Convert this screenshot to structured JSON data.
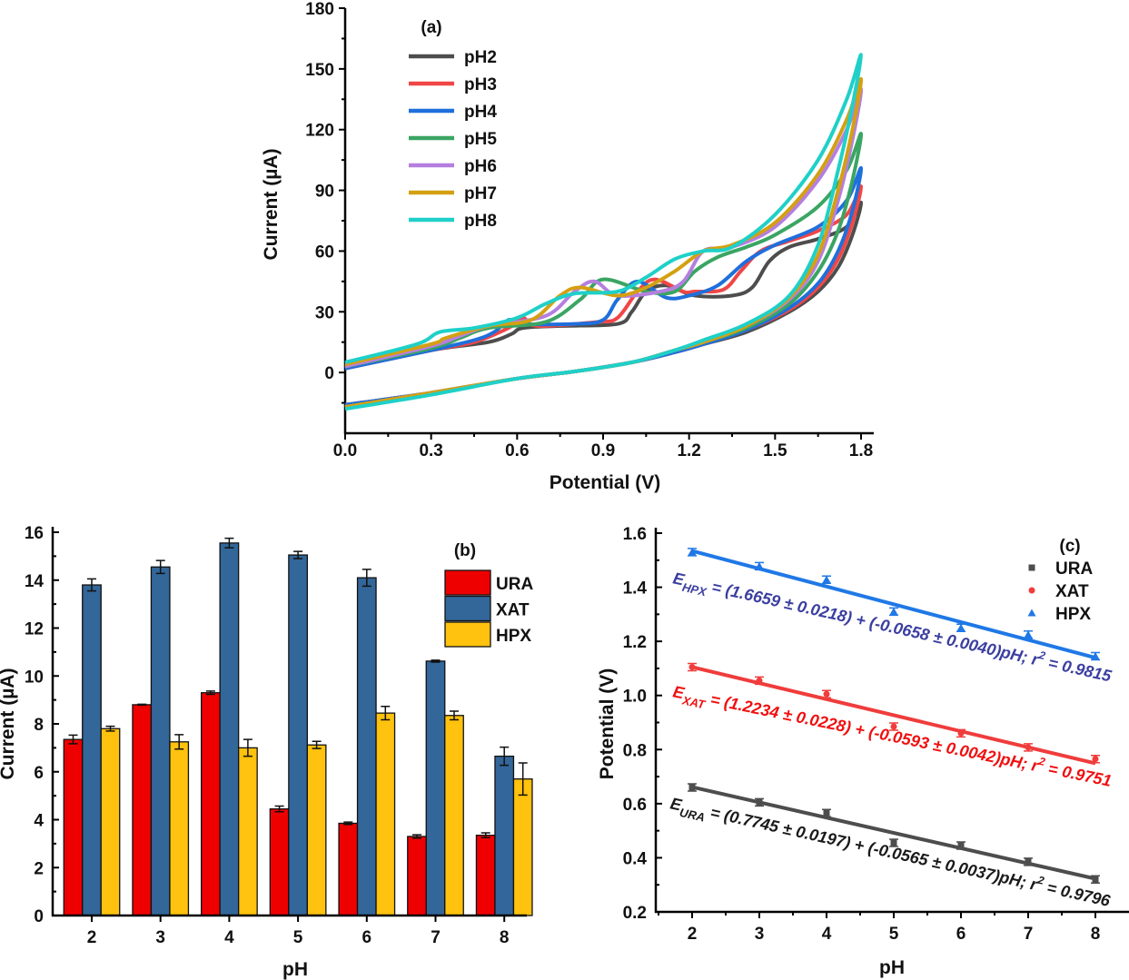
{
  "chart_data": [
    {
      "type": "line",
      "panel_label": "(a)",
      "xlabel": "Potential (V)",
      "ylabel": "Current (µA)",
      "xlim": [
        0,
        1.8
      ],
      "ylim": [
        -30,
        180
      ],
      "xticks": [
        "0.0",
        "0.3",
        "0.6",
        "0.9",
        "1.2",
        "1.5",
        "1.8"
      ],
      "yticks": [
        "0",
        "30",
        "60",
        "90",
        "120",
        "150",
        "180"
      ],
      "grid": false,
      "legend_position": "top-left",
      "series": [
        {
          "name": "pH2",
          "color": "#4d4d4d",
          "forward": [
            [
              0,
              -16
            ],
            [
              0.3,
              -10
            ],
            [
              0.6,
              -3
            ],
            [
              0.8,
              0.5
            ],
            [
              1.0,
              5
            ],
            [
              1.15,
              10
            ],
            [
              1.25,
              14
            ],
            [
              1.4,
              20
            ],
            [
              1.55,
              30
            ],
            [
              1.65,
              40
            ],
            [
              1.72,
              52
            ],
            [
              1.77,
              68
            ],
            [
              1.8,
              84
            ]
          ],
          "reverse": [
            [
              1.8,
              84
            ],
            [
              1.75,
              72
            ],
            [
              1.65,
              66
            ],
            [
              1.55,
              62
            ],
            [
              1.48,
              55
            ],
            [
              1.42,
              42
            ],
            [
              1.35,
              38
            ],
            [
              1.22,
              38
            ],
            [
              1.12,
              43
            ],
            [
              1.05,
              40
            ],
            [
              1.0,
              30
            ],
            [
              0.95,
              24
            ],
            [
              0.75,
              23
            ],
            [
              0.62,
              22
            ],
            [
              0.58,
              19
            ],
            [
              0.5,
              15
            ],
            [
              0.3,
              11
            ],
            [
              0,
              2
            ]
          ]
        },
        {
          "name": "pH3",
          "color": "#f04646",
          "forward": [
            [
              0,
              -16
            ],
            [
              0.3,
              -10
            ],
            [
              0.6,
              -3
            ],
            [
              0.8,
              0.5
            ],
            [
              1.0,
              5
            ],
            [
              1.15,
              10
            ],
            [
              1.25,
              14
            ],
            [
              1.4,
              21
            ],
            [
              1.55,
              31
            ],
            [
              1.65,
              42
            ],
            [
              1.72,
              56
            ],
            [
              1.77,
              74
            ],
            [
              1.8,
              92
            ]
          ],
          "reverse": [
            [
              1.8,
              92
            ],
            [
              1.75,
              78
            ],
            [
              1.65,
              70
            ],
            [
              1.55,
              65
            ],
            [
              1.45,
              60
            ],
            [
              1.38,
              50
            ],
            [
              1.32,
              41
            ],
            [
              1.22,
              40
            ],
            [
              1.18,
              40
            ],
            [
              1.08,
              46
            ],
            [
              1.02,
              40
            ],
            [
              0.95,
              27
            ],
            [
              0.88,
              25
            ],
            [
              0.67,
              23
            ],
            [
              0.62,
              27
            ],
            [
              0.57,
              22
            ],
            [
              0.45,
              15
            ],
            [
              0.3,
              11
            ],
            [
              0,
              2
            ]
          ]
        },
        {
          "name": "pH4",
          "color": "#1f6fdc",
          "forward": [
            [
              0,
              -16
            ],
            [
              0.3,
              -10
            ],
            [
              0.6,
              -3
            ],
            [
              0.8,
              0.5
            ],
            [
              1.0,
              5
            ],
            [
              1.15,
              10
            ],
            [
              1.25,
              14
            ],
            [
              1.4,
              21
            ],
            [
              1.55,
              32
            ],
            [
              1.65,
              44
            ],
            [
              1.72,
              60
            ],
            [
              1.77,
              80
            ],
            [
              1.8,
              101
            ]
          ],
          "reverse": [
            [
              1.8,
              101
            ],
            [
              1.75,
              85
            ],
            [
              1.65,
              72
            ],
            [
              1.5,
              63
            ],
            [
              1.4,
              55
            ],
            [
              1.3,
              43
            ],
            [
              1.2,
              38
            ],
            [
              1.12,
              37
            ],
            [
              1.02,
              45
            ],
            [
              0.95,
              36
            ],
            [
              0.9,
              26
            ],
            [
              0.8,
              24
            ],
            [
              0.6,
              24
            ],
            [
              0.57,
              26
            ],
            [
              0.52,
              20
            ],
            [
              0.45,
              16
            ],
            [
              0.3,
              11
            ],
            [
              0,
              2
            ]
          ]
        },
        {
          "name": "pH5",
          "color": "#3aa563",
          "forward": [
            [
              0,
              -17
            ],
            [
              0.3,
              -10
            ],
            [
              0.6,
              -3
            ],
            [
              0.8,
              0.5
            ],
            [
              1.0,
              5
            ],
            [
              1.15,
              11
            ],
            [
              1.25,
              15
            ],
            [
              1.4,
              22
            ],
            [
              1.55,
              34
            ],
            [
              1.65,
              50
            ],
            [
              1.72,
              70
            ],
            [
              1.77,
              95
            ],
            [
              1.8,
              118
            ]
          ],
          "reverse": [
            [
              1.8,
              118
            ],
            [
              1.75,
              100
            ],
            [
              1.65,
              82
            ],
            [
              1.5,
              68
            ],
            [
              1.4,
              62
            ],
            [
              1.3,
              57
            ],
            [
              1.22,
              50
            ],
            [
              1.15,
              40
            ],
            [
              1.05,
              40
            ],
            [
              0.9,
              46
            ],
            [
              0.82,
              36
            ],
            [
              0.7,
              25
            ],
            [
              0.5,
              22
            ],
            [
              0.4,
              17
            ],
            [
              0.3,
              12
            ],
            [
              0,
              3
            ]
          ]
        },
        {
          "name": "pH6",
          "color": "#b47fe0",
          "forward": [
            [
              0,
              -17
            ],
            [
              0.3,
              -10
            ],
            [
              0.6,
              -3
            ],
            [
              0.8,
              0.5
            ],
            [
              1.0,
              5
            ],
            [
              1.15,
              11
            ],
            [
              1.25,
              15
            ],
            [
              1.4,
              23
            ],
            [
              1.55,
              36
            ],
            [
              1.65,
              55
            ],
            [
              1.72,
              85
            ],
            [
              1.77,
              115
            ],
            [
              1.8,
              140
            ]
          ],
          "reverse": [
            [
              1.8,
              140
            ],
            [
              1.75,
              120
            ],
            [
              1.65,
              95
            ],
            [
              1.5,
              72
            ],
            [
              1.35,
              62
            ],
            [
              1.25,
              60
            ],
            [
              1.18,
              45
            ],
            [
              1.1,
              40
            ],
            [
              0.95,
              38
            ],
            [
              0.87,
              45
            ],
            [
              0.8,
              40
            ],
            [
              0.7,
              28
            ],
            [
              0.5,
              23
            ],
            [
              0.4,
              18
            ],
            [
              0.3,
              13
            ],
            [
              0,
              3
            ]
          ]
        },
        {
          "name": "pH7",
          "color": "#d4a012",
          "forward": [
            [
              0,
              -17
            ],
            [
              0.3,
              -10
            ],
            [
              0.6,
              -3
            ],
            [
              0.8,
              0.5
            ],
            [
              1.0,
              5
            ],
            [
              1.15,
              11
            ],
            [
              1.25,
              15
            ],
            [
              1.4,
              23
            ],
            [
              1.55,
              37
            ],
            [
              1.65,
              58
            ],
            [
              1.72,
              90
            ],
            [
              1.77,
              120
            ],
            [
              1.8,
              145
            ]
          ],
          "reverse": [
            [
              1.8,
              145
            ],
            [
              1.75,
              125
            ],
            [
              1.65,
              98
            ],
            [
              1.5,
              74
            ],
            [
              1.35,
              63
            ],
            [
              1.25,
              60
            ],
            [
              1.15,
              50
            ],
            [
              1.05,
              42
            ],
            [
              0.95,
              38
            ],
            [
              0.82,
              42
            ],
            [
              0.75,
              38
            ],
            [
              0.65,
              26
            ],
            [
              0.5,
              23
            ],
            [
              0.35,
              17
            ],
            [
              0.3,
              14
            ],
            [
              0,
              4
            ]
          ]
        },
        {
          "name": "pH8",
          "color": "#1fd0c8",
          "forward": [
            [
              0,
              -18
            ],
            [
              0.3,
              -11
            ],
            [
              0.6,
              -3
            ],
            [
              0.8,
              0.5
            ],
            [
              1.0,
              5
            ],
            [
              1.15,
              11
            ],
            [
              1.25,
              16
            ],
            [
              1.4,
              24
            ],
            [
              1.55,
              38
            ],
            [
              1.65,
              63
            ],
            [
              1.72,
              100
            ],
            [
              1.77,
              132
            ],
            [
              1.8,
              157
            ]
          ],
          "reverse": [
            [
              1.8,
              157
            ],
            [
              1.75,
              135
            ],
            [
              1.65,
              105
            ],
            [
              1.5,
              78
            ],
            [
              1.35,
              62
            ],
            [
              1.25,
              60
            ],
            [
              1.15,
              56
            ],
            [
              1.05,
              47
            ],
            [
              0.95,
              40
            ],
            [
              0.8,
              39
            ],
            [
              0.7,
              34
            ],
            [
              0.6,
              27
            ],
            [
              0.45,
              22
            ],
            [
              0.33,
              20
            ],
            [
              0.25,
              14
            ],
            [
              0,
              5
            ]
          ]
        }
      ]
    },
    {
      "type": "bar",
      "panel_label": "(b)",
      "xlabel": "pH",
      "ylabel": "Current (µA)",
      "ylim": [
        0,
        16
      ],
      "yticks": [
        "0",
        "2",
        "4",
        "6",
        "8",
        "10",
        "12",
        "14",
        "16"
      ],
      "categories": [
        "2",
        "3",
        "4",
        "5",
        "6",
        "7",
        "8"
      ],
      "grid": false,
      "legend_position": "top-right",
      "series": [
        {
          "name": "URA",
          "color": "#ee0000",
          "values": [
            7.35,
            8.8,
            9.3,
            4.45,
            3.85,
            3.3,
            3.35
          ],
          "errors": [
            0.18,
            0.02,
            0.07,
            0.12,
            0.05,
            0.07,
            0.1
          ]
        },
        {
          "name": "XAT",
          "color": "#336699",
          "values": [
            13.8,
            14.55,
            15.55,
            15.05,
            14.1,
            10.62,
            6.65
          ],
          "errors": [
            0.25,
            0.27,
            0.2,
            0.15,
            0.35,
            0.04,
            0.38
          ]
        },
        {
          "name": "HPX",
          "color": "#ffc20e",
          "values": [
            7.8,
            7.25,
            7.0,
            7.12,
            8.45,
            8.35,
            5.7
          ],
          "errors": [
            0.1,
            0.3,
            0.35,
            0.15,
            0.28,
            0.18,
            0.67
          ]
        }
      ]
    },
    {
      "type": "scatter",
      "panel_label": "(c)",
      "xlabel": "pH",
      "ylabel": "Potential (V)",
      "xlim": [
        1.5,
        8.5
      ],
      "ylim": [
        0.2,
        1.6
      ],
      "xticks": [
        "2",
        "3",
        "4",
        "5",
        "6",
        "7",
        "8"
      ],
      "yticks": [
        "0.2",
        "0.4",
        "0.6",
        "0.8",
        "1.0",
        "1.2",
        "1.4",
        "1.6"
      ],
      "grid": false,
      "legend_position": "top-right",
      "x": [
        2,
        3,
        4,
        5,
        6,
        7,
        8
      ],
      "series": [
        {
          "name": "URA",
          "color": "#4d4d4d",
          "marker": "square",
          "values": [
            0.66,
            0.605,
            0.565,
            0.455,
            0.445,
            0.385,
            0.32
          ],
          "fit": {
            "intercept": 0.7745,
            "slope": -0.0565
          },
          "equation": {
            "E": "E",
            "sub": "URA",
            "body": " = (0.7745 ± 0.0197) + (-0.0565 ± 0.0037)pH; r",
            "sup": "2",
            "tail": " = 0.9796",
            "color": "#1a1a1a"
          }
        },
        {
          "name": "XAT",
          "color": "#f03c3c",
          "marker": "circle",
          "values": [
            1.105,
            1.055,
            1.005,
            0.885,
            0.86,
            0.808,
            0.765
          ],
          "fit": {
            "intercept": 1.2234,
            "slope": -0.0593
          },
          "equation": {
            "E": "E",
            "sub": "XAT",
            "body": " = (1.2234 ± 0.0228) + (-0.0593 ± 0.0042)pH; r",
            "sup": "2",
            "tail": " = 0.9751",
            "color": "#f01010"
          }
        },
        {
          "name": "HPX",
          "color": "#1f78e6",
          "marker": "triangle",
          "values": [
            1.53,
            1.478,
            1.428,
            1.31,
            1.25,
            1.225,
            1.145
          ],
          "fit": {
            "intercept": 1.6659,
            "slope": -0.0658
          },
          "equation": {
            "E": "E",
            "sub": "HPX",
            "body": " = (1.6659 ± 0.0218) + (-0.0658 ± 0.0040)pH; r",
            "sup": "2",
            "tail": " = 0.9815",
            "color": "#3b3fa0"
          }
        }
      ]
    }
  ]
}
